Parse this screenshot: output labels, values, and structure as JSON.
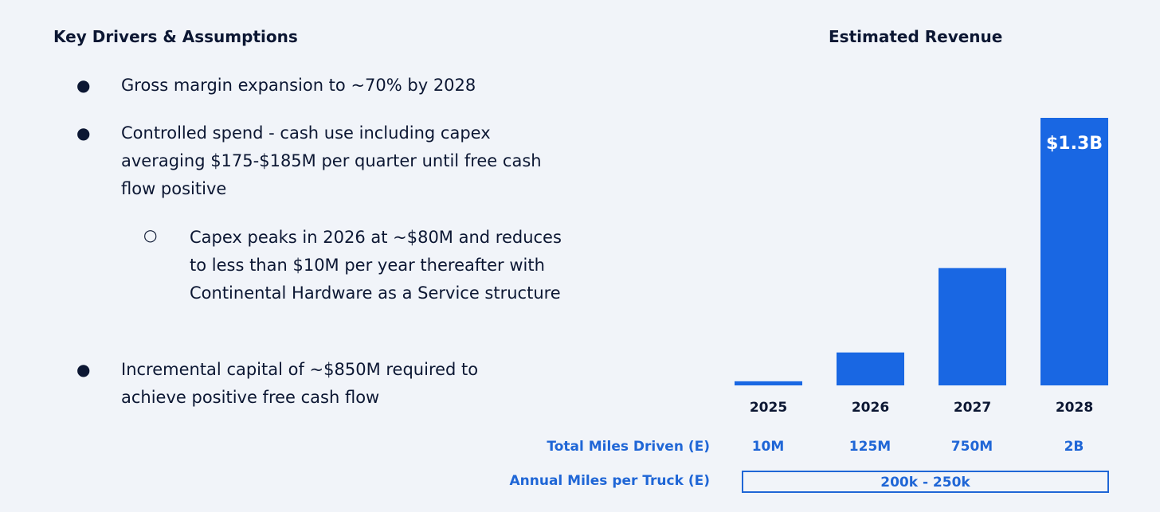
{
  "left": {
    "heading": "Key Drivers & Assumptions",
    "bullets": [
      "Gross margin expansion to ~70% by 2028",
      "Controlled spend - cash use including capex averaging $175-$185M per quarter until free cash flow positive",
      "Incremental capital of ~$850M required to achieve positive free cash flow"
    ],
    "sub_bullets": [
      "Capex peaks in 2026 at ~$80M and reduces to less than $10M per year thereafter with Continental Hardware as a Service structure"
    ]
  },
  "chart_data": {
    "type": "bar",
    "title": "Estimated Revenue",
    "categories": [
      "2025",
      "2026",
      "2027",
      "2028"
    ],
    "values": [
      0.02,
      0.16,
      0.57,
      1.3
    ],
    "unit": "$B",
    "data_labels": [
      "",
      "",
      "",
      "$1.3B"
    ],
    "bar_color": "#1967e3",
    "label_color": "#ffffff"
  },
  "metrics": {
    "total_miles_label": "Total Miles Driven (E)",
    "total_miles_values": [
      "10M",
      "125M",
      "750M",
      "2B"
    ],
    "annual_miles_label": "Annual Miles per Truck (E)",
    "annual_miles_value": "200k - 250k",
    "accent_color": "#1f66d6"
  }
}
